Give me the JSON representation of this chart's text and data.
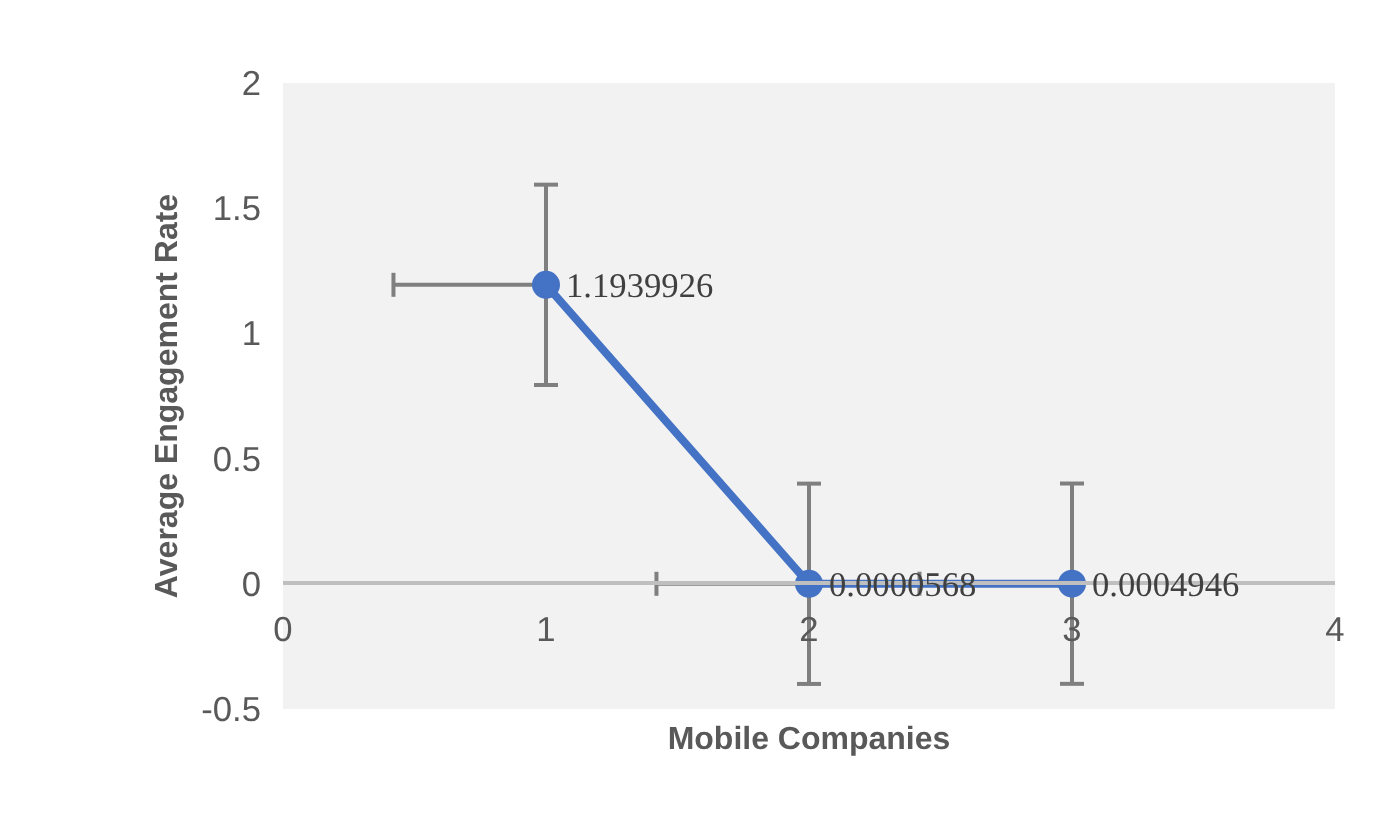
{
  "chart_data": {
    "type": "scatter",
    "xlabel": "Mobile Companies",
    "ylabel": "Average Engagement Rate",
    "x": [
      1,
      2,
      3
    ],
    "series": [
      {
        "color": "#4472c4",
        "values": [
          1.1939926,
          5.68e-05,
          0.0004946
        ],
        "line_style": "solid",
        "errors": [
          0.4,
          0.4,
          0.4
        ],
        "xerrors": [
          [
            0.42,
            1
          ],
          [
            1.42,
            2
          ],
          [
            2.42,
            3
          ]
        ]
      }
    ],
    "value_labels": [
      "1.1939926",
      "0.0000568",
      "0.0004946"
    ],
    "marker": "circle",
    "grid": false,
    "xlim": [
      0,
      4
    ],
    "xticks": [
      0,
      1,
      2,
      3,
      4
    ],
    "ylim": [
      -0.5,
      2
    ],
    "yticks": [
      {
        "value": -0.5,
        "label": "-0.5"
      },
      0,
      0.5,
      1,
      1.5,
      2
    ]
  }
}
